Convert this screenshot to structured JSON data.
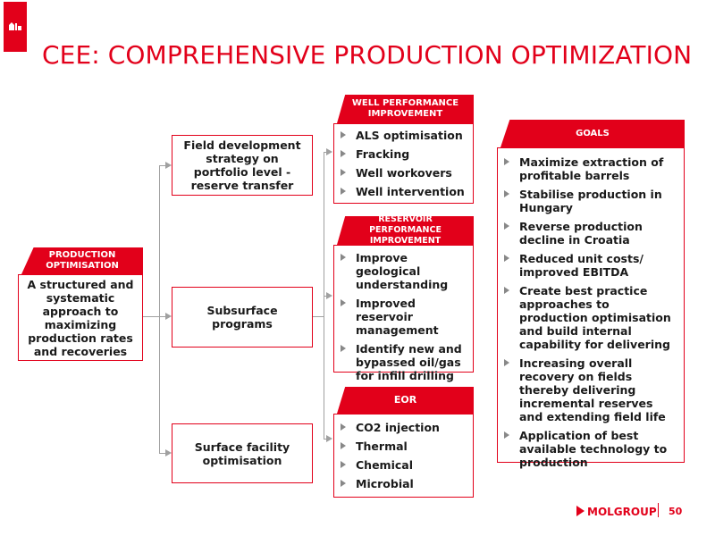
{
  "title": "CEE: COMPREHENSIVE PRODUCTION OPTIMIZATION",
  "production": {
    "header": "PRODUCTION OPTIMISATION",
    "text": "A structured and systematic approach to maximizing production rates and recoveries"
  },
  "middle": [
    "Field development strategy on portfolio level - reserve transfer",
    "Subsurface programs",
    "Surface facility optimisation"
  ],
  "well": {
    "header": "WELL PERFORMANCE IMPROVEMENT",
    "items": [
      "ALS optimisation",
      "Fracking",
      "Well workovers",
      "Well intervention"
    ]
  },
  "reservoir": {
    "header": "RESERVOIR PERFORMANCE IMPROVEMENT",
    "items": [
      "Improve geological understanding",
      "Improved reservoir management",
      "Identify new and bypassed oil/gas for infill drilling"
    ]
  },
  "eor": {
    "header": "EOR",
    "items": [
      "CO2 injection",
      "Thermal",
      "Chemical",
      "Microbial"
    ]
  },
  "goals": {
    "header": "GOALS",
    "items": [
      "Maximize extraction of profitable barrels",
      "Stabilise production in Hungary",
      "Reverse production decline in Croatia",
      "Reduced unit costs/ improved EBITDA",
      "Create best practice approaches to production optimisation and build internal capability for delivering",
      "Increasing overall recovery on fields thereby delivering incremental reserves and extending field life",
      "Application of best available technology to production"
    ]
  },
  "footer": {
    "brand": "MOLGROUP",
    "page": "50"
  },
  "colors": {
    "accent": "#e2001a",
    "connector": "#a0a0a0",
    "bullet": "#888888"
  }
}
